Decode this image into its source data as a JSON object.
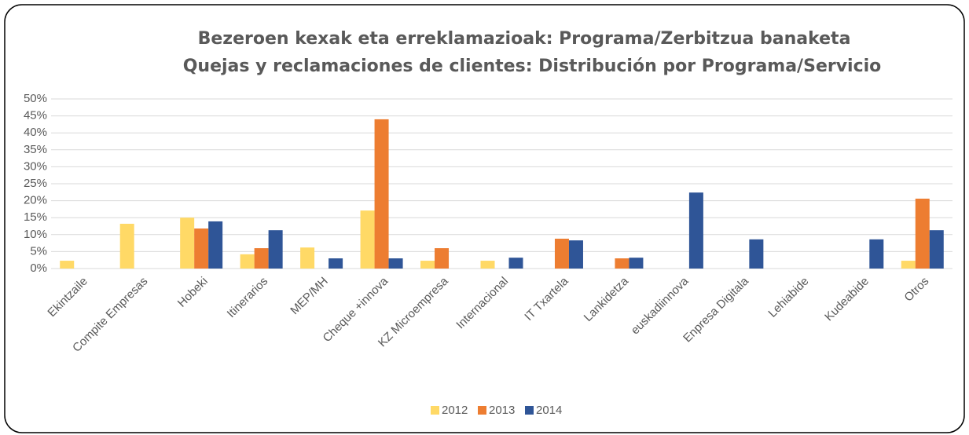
{
  "chart_data": {
    "type": "bar",
    "title": "Bezeroen kexak eta erreklamazioak: Programa/Zerbitzua banaketa",
    "subtitle": "Quejas y reclamaciones de clientes: Distribución por Programa/Servicio",
    "categories": [
      "Ekintzaile",
      "Compite Empresas",
      "Hobeki",
      "Itinerarios",
      "MEP/MH",
      "Cheque +innova",
      "KZ Microempresa",
      "Internacional",
      "IT Txartela",
      "Lankidetza",
      "euskadiinnova",
      "Enpresa Digitala",
      "Lehiabide",
      "Kudeabide",
      "Otros"
    ],
    "series": [
      {
        "name": "2012",
        "color": "#ffd966",
        "values": [
          2.3,
          13.2,
          15,
          4.2,
          6.2,
          17.1,
          2.3,
          2.3,
          null,
          null,
          null,
          null,
          null,
          null,
          2.3
        ]
      },
      {
        "name": "2013",
        "color": "#ed7d31",
        "values": [
          null,
          null,
          11.8,
          6,
          null,
          44,
          6,
          null,
          8.8,
          3,
          null,
          null,
          null,
          null,
          20.6
        ]
      },
      {
        "name": "2014",
        "color": "#2f5597",
        "values": [
          null,
          null,
          13.9,
          11.3,
          3,
          3,
          null,
          3.2,
          8.3,
          3.2,
          22.4,
          8.6,
          null,
          8.6,
          11.3
        ]
      }
    ],
    "ylim": [
      0,
      50
    ],
    "yticks": [
      {
        "value": 0,
        "label": "0%"
      },
      {
        "value": 5,
        "label": "5%"
      },
      {
        "value": 10,
        "label": "10%"
      },
      {
        "value": 15,
        "label": "15%"
      },
      {
        "value": 20,
        "label": "20%"
      },
      {
        "value": 25,
        "label": "25%"
      },
      {
        "value": 30,
        "label": "30%"
      },
      {
        "value": 35,
        "label": "35%"
      },
      {
        "value": 40,
        "label": "40%"
      },
      {
        "value": 45,
        "label": "45%"
      },
      {
        "value": 50,
        "label": "50%"
      }
    ],
    "grid": true,
    "legend": "bottom"
  }
}
